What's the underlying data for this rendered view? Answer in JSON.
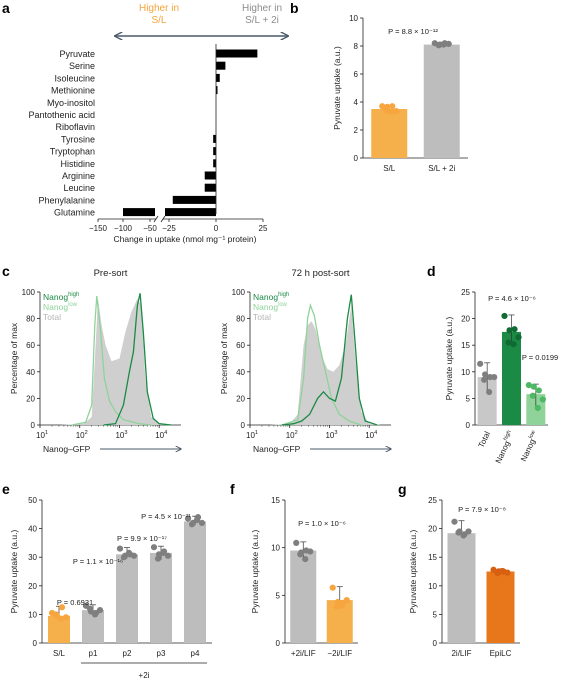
{
  "colors": {
    "sl": "#F5B04C",
    "two_i": "#BDBDBD",
    "dot_sl": "#F7A63F",
    "dot_grey": "#7F7F7F",
    "nanog_high": "#1A8A45",
    "nanog_low": "#8FD39A",
    "total": "#CFCFCF",
    "epi": "#E8761A",
    "epi_dot": "#D86010",
    "arrow": "#4A5A6A",
    "bar_a": "#000000"
  },
  "chart_data": [
    {
      "panel": "a",
      "type": "bar",
      "header_left": [
        "Higher in",
        "S/L"
      ],
      "header_right": [
        "Higher in",
        "S/L + 2i"
      ],
      "categories": [
        "Pyruvate",
        "Serine",
        "Isoleucine",
        "Methionine",
        "Myo-inositol",
        "Pantothenic acid",
        "Riboflavin",
        "Tyrosine",
        "Tryptophan",
        "Histidine",
        "Arginine",
        "Leucine",
        "Phenylalanine",
        "Glutamine"
      ],
      "values": [
        22,
        5,
        2,
        0.5,
        0,
        0,
        0,
        -1.5,
        -1.5,
        -1.5,
        -6,
        -6,
        -23,
        -105
      ],
      "xlabel": "Change in uptake (nmol mg⁻¹ protein)",
      "xticks": [
        "−150",
        "−100",
        "−50",
        "−25",
        "0",
        "25"
      ],
      "axis_break": true
    },
    {
      "panel": "b",
      "type": "bar",
      "categories": [
        "S/L",
        "S/L + 2i"
      ],
      "values": [
        3.5,
        8.1
      ],
      "points": [
        [
          3.7,
          3.65,
          3.7,
          3.4,
          3.3,
          3.35
        ],
        [
          8.2,
          8.1,
          8.2,
          8.05,
          8.1,
          8.15
        ]
      ],
      "ylabel": "Pyruvate uptake (a.u.)",
      "ylim": [
        0,
        10
      ],
      "yticks": [
        "0",
        "2",
        "4",
        "6",
        "8",
        "10"
      ],
      "pvalue": "P = 8.8 × 10⁻¹²"
    },
    {
      "panel": "c",
      "type": "area",
      "subtitles": [
        "Pre-sort",
        "72 h post-sort"
      ],
      "ylabel": "Percentage of max",
      "xlabel": "Nanog–GFP",
      "ylim": [
        0,
        100
      ],
      "yticks": [
        "0",
        "20",
        "40",
        "60",
        "80",
        "100"
      ],
      "xticks": [
        "1",
        "2",
        "3",
        "4"
      ],
      "legend": [
        {
          "base": "Nanog",
          "sup": "high"
        },
        {
          "base": "Nanog",
          "sup": "low"
        },
        {
          "base": "Total",
          "sup": ""
        }
      ],
      "pre_sort": {
        "total": [
          [
            1.5,
            0
          ],
          [
            2.1,
            1
          ],
          [
            2.3,
            6
          ],
          [
            2.4,
            60
          ],
          [
            2.46,
            95
          ],
          [
            2.55,
            75
          ],
          [
            2.65,
            60
          ],
          [
            2.8,
            48
          ],
          [
            3.0,
            50
          ],
          [
            3.15,
            70
          ],
          [
            3.3,
            85
          ],
          [
            3.45,
            95
          ],
          [
            3.55,
            90
          ],
          [
            3.65,
            35
          ],
          [
            3.8,
            6
          ],
          [
            4.0,
            1
          ],
          [
            4.3,
            0
          ]
        ],
        "low": [
          [
            1.8,
            0
          ],
          [
            2.15,
            2
          ],
          [
            2.3,
            15
          ],
          [
            2.38,
            75
          ],
          [
            2.43,
            97
          ],
          [
            2.52,
            72
          ],
          [
            2.62,
            35
          ],
          [
            2.75,
            18
          ],
          [
            2.9,
            10
          ],
          [
            3.1,
            4
          ],
          [
            3.5,
            1
          ],
          [
            3.8,
            0
          ]
        ],
        "high": [
          [
            2.6,
            0
          ],
          [
            2.9,
            1
          ],
          [
            3.1,
            15
          ],
          [
            3.25,
            40
          ],
          [
            3.35,
            55
          ],
          [
            3.45,
            90
          ],
          [
            3.52,
            99
          ],
          [
            3.6,
            70
          ],
          [
            3.7,
            25
          ],
          [
            3.85,
            5
          ],
          [
            4.0,
            1
          ],
          [
            4.3,
            0
          ]
        ]
      },
      "post_sort": {
        "total": [
          [
            1.5,
            0
          ],
          [
            2.0,
            1
          ],
          [
            2.2,
            8
          ],
          [
            2.35,
            60
          ],
          [
            2.45,
            75
          ],
          [
            2.55,
            78
          ],
          [
            2.65,
            72
          ],
          [
            2.8,
            52
          ],
          [
            2.95,
            42
          ],
          [
            3.1,
            40
          ],
          [
            3.25,
            45
          ],
          [
            3.4,
            60
          ],
          [
            3.55,
            90
          ],
          [
            3.65,
            50
          ],
          [
            3.8,
            10
          ],
          [
            4.0,
            1
          ],
          [
            4.3,
            0
          ]
        ],
        "low": [
          [
            1.8,
            0
          ],
          [
            2.2,
            4
          ],
          [
            2.35,
            35
          ],
          [
            2.45,
            80
          ],
          [
            2.52,
            90
          ],
          [
            2.62,
            82
          ],
          [
            2.75,
            60
          ],
          [
            2.9,
            40
          ],
          [
            3.05,
            20
          ],
          [
            3.25,
            8
          ],
          [
            3.5,
            3
          ],
          [
            3.8,
            0
          ]
        ],
        "high": [
          [
            1.8,
            0
          ],
          [
            2.1,
            1
          ],
          [
            2.3,
            3
          ],
          [
            2.5,
            8
          ],
          [
            2.7,
            20
          ],
          [
            2.85,
            25
          ],
          [
            3.0,
            20
          ],
          [
            3.15,
            18
          ],
          [
            3.3,
            35
          ],
          [
            3.45,
            80
          ],
          [
            3.55,
            98
          ],
          [
            3.65,
            60
          ],
          [
            3.75,
            20
          ],
          [
            3.9,
            3
          ],
          [
            4.2,
            0
          ]
        ]
      }
    },
    {
      "panel": "d",
      "type": "bar",
      "categories": [
        {
          "base": "Total",
          "sup": ""
        },
        {
          "base": "Nanog",
          "sup": "high"
        },
        {
          "base": "Nanog",
          "sup": "low"
        }
      ],
      "values": [
        9,
        17.5,
        5.8
      ],
      "points": [
        [
          11.5,
          9.5,
          9.0,
          8.5,
          6.2,
          9.0
        ],
        [
          20.5,
          17.8,
          18.0,
          15.5,
          15.2,
          16.5
        ],
        [
          7.5,
          7.2,
          6.5,
          5.5,
          3.2,
          4.8
        ]
      ],
      "ylabel": "Pyruvate uptake (a.u.)",
      "ylim": [
        0,
        25
      ],
      "yticks": [
        "0",
        "5",
        "10",
        "15",
        "20",
        "25"
      ],
      "pvalues": [
        "P = 4.6 × 10⁻⁶",
        "P = 0.0199"
      ]
    },
    {
      "panel": "e",
      "type": "bar",
      "categories": [
        "S/L",
        "p1",
        "p2",
        "p3",
        "p4"
      ],
      "values": [
        9.5,
        11.5,
        31,
        31.5,
        42.5
      ],
      "points": [
        [
          10.5,
          9.5,
          12.5,
          10.0,
          8.5,
          9.0
        ],
        [
          13.0,
          11.0,
          10.5,
          12.0,
          10.0,
          11.5
        ],
        [
          33.0,
          30.5,
          31.0,
          30.0,
          31.5,
          30.5
        ],
        [
          33.5,
          31.0,
          32.0,
          29.5,
          31.5,
          30.5
        ],
        [
          43.5,
          42.0,
          44.0,
          41.5,
          43.0,
          42.0
        ]
      ],
      "ylabel": "Pyruvate uptake (a.u.)",
      "ylim": [
        0,
        50
      ],
      "yticks": [
        "0",
        "10",
        "20",
        "30",
        "40",
        "50"
      ],
      "pvalues": [
        "P = 0.6931",
        "P = 1.1 × 10⁻¹⁶",
        "P = 9.9 × 10⁻¹⁷",
        "P = 4.5 × 10⁻²¹"
      ],
      "group_label": "+2i"
    },
    {
      "panel": "f",
      "type": "bar",
      "categories": [
        "+2i/LIF",
        "−2i/LIF"
      ],
      "values": [
        9.7,
        4.5
      ],
      "points": [
        [
          10.5,
          9.5,
          9.7,
          9.3,
          8.8,
          9.6
        ],
        [
          5.8,
          4.3,
          4.2,
          3.8,
          3.9,
          4.5
        ]
      ],
      "ylabel": "Pyruvate uptake (a.u.)",
      "ylim": [
        0,
        15
      ],
      "yticks": [
        "0",
        "5",
        "10",
        "15"
      ],
      "pvalue": "P = 1.0 × 10⁻⁶"
    },
    {
      "panel": "g",
      "type": "bar",
      "categories": [
        "2i/LIF",
        "EpiLC"
      ],
      "values": [
        19.2,
        12.5
      ],
      "points": [
        [
          21.2,
          19.5,
          19.0,
          19.3,
          18.8,
          19.5
        ],
        [
          12.8,
          12.5,
          12.5,
          12.2,
          12.6,
          12.3
        ]
      ],
      "ylabel": "Pyruvate uptake (a.u.)",
      "ylim": [
        0,
        25
      ],
      "yticks": [
        "0",
        "5",
        "10",
        "15",
        "20",
        "25"
      ],
      "pvalue": "P = 7.9 × 10⁻⁸"
    }
  ]
}
